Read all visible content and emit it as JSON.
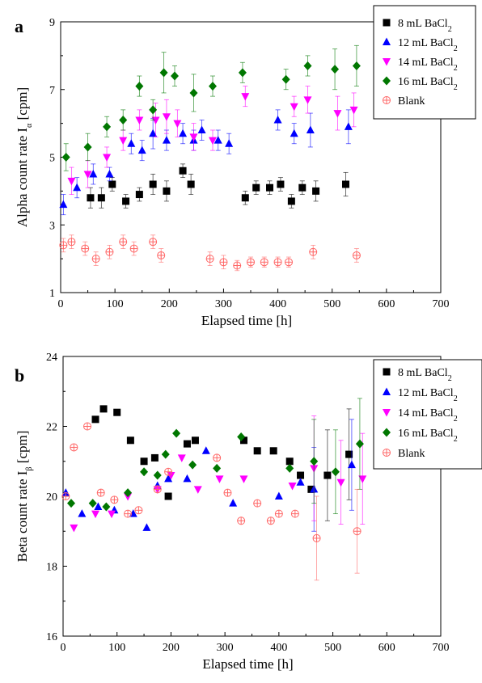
{
  "chart_data": [
    {
      "panel": "a",
      "type": "scatter",
      "xlabel": "Elapsed time [h]",
      "ylabel": "Alpha count rate I",
      "ylabel_sub": "α",
      "ylabel_unit": " [cpm]",
      "xlim": [
        0,
        700
      ],
      "ylim": [
        1,
        9
      ],
      "xticks": [
        0,
        100,
        200,
        300,
        400,
        500,
        600,
        700
      ],
      "yticks": [
        1,
        3,
        5,
        7,
        9
      ],
      "legend_position": "top-right",
      "series": [
        {
          "name": "8 mL BaCl",
          "name_sub": "2",
          "marker": "square",
          "color": "#000000",
          "points": [
            [
              55,
              3.8
            ],
            [
              75,
              3.8
            ],
            [
              95,
              4.2
            ],
            [
              120,
              3.7
            ],
            [
              145,
              3.9
            ],
            [
              170,
              4.2
            ],
            [
              195,
              4.0
            ],
            [
              225,
              4.6
            ],
            [
              240,
              4.2
            ],
            [
              340,
              3.8
            ],
            [
              360,
              4.1
            ],
            [
              385,
              4.1
            ],
            [
              405,
              4.2
            ],
            [
              425,
              3.7
            ],
            [
              445,
              4.1
            ],
            [
              470,
              4.0
            ],
            [
              525,
              4.2
            ]
          ],
          "err": [
            0.3,
            0.3,
            0.2,
            0.2,
            0.2,
            0.3,
            0.3,
            0.2,
            0.3,
            0.2,
            0.2,
            0.2,
            0.2,
            0.2,
            0.2,
            0.3,
            0.35
          ]
        },
        {
          "name": "12 mL BaCl",
          "name_sub": "2",
          "marker": "triangle-up",
          "color": "#0000ff",
          "points": [
            [
              5,
              3.6
            ],
            [
              30,
              4.1
            ],
            [
              60,
              4.5
            ],
            [
              90,
              4.5
            ],
            [
              130,
              5.4
            ],
            [
              150,
              5.2
            ],
            [
              170,
              5.7
            ],
            [
              195,
              5.5
            ],
            [
              225,
              5.7
            ],
            [
              245,
              5.5
            ],
            [
              260,
              5.8
            ],
            [
              290,
              5.5
            ],
            [
              310,
              5.4
            ],
            [
              400,
              6.1
            ],
            [
              430,
              5.7
            ],
            [
              460,
              5.8
            ],
            [
              530,
              5.9
            ]
          ],
          "err": [
            0.3,
            0.3,
            0.3,
            0.2,
            0.3,
            0.3,
            0.45,
            0.3,
            0.3,
            0.3,
            0.3,
            0.3,
            0.3,
            0.3,
            0.3,
            0.5,
            0.5
          ]
        },
        {
          "name": "14 mL BaCl",
          "name_sub": "2",
          "marker": "triangle-down",
          "color": "#ff00ff",
          "points": [
            [
              20,
              4.3
            ],
            [
              50,
              4.5
            ],
            [
              85,
              5.0
            ],
            [
              115,
              5.5
            ],
            [
              145,
              6.1
            ],
            [
              175,
              6.1
            ],
            [
              195,
              6.2
            ],
            [
              215,
              6.0
            ],
            [
              245,
              5.6
            ],
            [
              280,
              5.5
            ],
            [
              340,
              6.8
            ],
            [
              430,
              6.5
            ],
            [
              455,
              6.7
            ],
            [
              510,
              6.3
            ],
            [
              540,
              6.4
            ]
          ],
          "err": [
            0.4,
            0.4,
            0.3,
            0.3,
            0.3,
            0.5,
            0.5,
            0.4,
            0.4,
            0.3,
            0.3,
            0.3,
            0.4,
            0.5,
            0.5
          ]
        },
        {
          "name": "16 mL BaCl",
          "name_sub": "2",
          "marker": "diamond",
          "color": "#007700",
          "points": [
            [
              10,
              5.0
            ],
            [
              50,
              5.3
            ],
            [
              85,
              5.9
            ],
            [
              115,
              6.1
            ],
            [
              145,
              7.1
            ],
            [
              170,
              6.4
            ],
            [
              190,
              7.5
            ],
            [
              210,
              7.4
            ],
            [
              245,
              6.9
            ],
            [
              280,
              7.1
            ],
            [
              335,
              7.5
            ],
            [
              415,
              7.3
            ],
            [
              455,
              7.7
            ],
            [
              505,
              7.6
            ],
            [
              545,
              7.7
            ]
          ],
          "err": [
            0.4,
            0.4,
            0.3,
            0.3,
            0.3,
            0.3,
            0.6,
            0.3,
            0.55,
            0.3,
            0.3,
            0.3,
            0.3,
            0.6,
            0.6
          ]
        },
        {
          "name": "Blank",
          "marker": "circle-cross",
          "color": "#ff6666",
          "points": [
            [
              5,
              2.4
            ],
            [
              20,
              2.5
            ],
            [
              45,
              2.3
            ],
            [
              65,
              2.0
            ],
            [
              90,
              2.2
            ],
            [
              115,
              2.5
            ],
            [
              135,
              2.3
            ],
            [
              170,
              2.5
            ],
            [
              185,
              2.1
            ],
            [
              275,
              2.0
            ],
            [
              300,
              1.9
            ],
            [
              325,
              1.8
            ],
            [
              350,
              1.9
            ],
            [
              375,
              1.9
            ],
            [
              400,
              1.9
            ],
            [
              420,
              1.9
            ],
            [
              465,
              2.2
            ],
            [
              545,
              2.1
            ]
          ],
          "err": [
            0.2,
            0.2,
            0.2,
            0.2,
            0.2,
            0.2,
            0.2,
            0.2,
            0.2,
            0.2,
            0.2,
            0.15,
            0.15,
            0.15,
            0.15,
            0.15,
            0.2,
            0.2
          ]
        }
      ]
    },
    {
      "panel": "b",
      "type": "scatter",
      "xlabel": "Elapsed time [h]",
      "ylabel": "Beta count rate I",
      "ylabel_sub": "β",
      "ylabel_unit": " [cpm]",
      "xlim": [
        0,
        700
      ],
      "ylim": [
        16,
        24
      ],
      "xticks": [
        0,
        100,
        200,
        300,
        400,
        500,
        600,
        700
      ],
      "yticks": [
        16,
        18,
        20,
        22,
        24
      ],
      "legend_position": "top-right",
      "series": [
        {
          "name": "8 mL BaCl",
          "name_sub": "2",
          "marker": "square",
          "color": "#000000",
          "points": [
            [
              60,
              22.2
            ],
            [
              75,
              22.5
            ],
            [
              100,
              22.4
            ],
            [
              125,
              21.6
            ],
            [
              150,
              21.0
            ],
            [
              170,
              21.1
            ],
            [
              195,
              20.0
            ],
            [
              230,
              21.5
            ],
            [
              245,
              21.6
            ],
            [
              335,
              21.6
            ],
            [
              360,
              21.3
            ],
            [
              390,
              21.3
            ],
            [
              420,
              21.0
            ],
            [
              440,
              20.6
            ],
            [
              460,
              20.2
            ],
            [
              490,
              20.6
            ],
            [
              530,
              21.2
            ]
          ],
          "err": [
            0,
            0,
            0,
            0,
            0,
            0,
            0,
            0,
            0,
            0,
            0,
            0,
            0,
            0,
            0,
            1.3,
            1.3
          ]
        },
        {
          "name": "12 mL BaCl",
          "name_sub": "2",
          "marker": "triangle-up",
          "color": "#0000ff",
          "points": [
            [
              5,
              20.1
            ],
            [
              35,
              19.5
            ],
            [
              65,
              19.7
            ],
            [
              95,
              19.6
            ],
            [
              130,
              19.5
            ],
            [
              155,
              19.1
            ],
            [
              175,
              20.3
            ],
            [
              195,
              20.5
            ],
            [
              230,
              20.5
            ],
            [
              265,
              21.3
            ],
            [
              315,
              19.8
            ],
            [
              400,
              20.0
            ],
            [
              440,
              20.4
            ],
            [
              465,
              20.2
            ],
            [
              535,
              20.9
            ]
          ],
          "err": [
            0,
            0,
            0,
            0,
            0,
            0,
            0,
            0,
            0,
            0,
            0,
            0,
            0,
            1.2,
            1.3
          ]
        },
        {
          "name": "14 mL BaCl",
          "name_sub": "2",
          "marker": "triangle-down",
          "color": "#ff00ff",
          "points": [
            [
              20,
              19.1
            ],
            [
              60,
              19.5
            ],
            [
              90,
              19.5
            ],
            [
              120,
              20.0
            ],
            [
              175,
              20.2
            ],
            [
              200,
              20.6
            ],
            [
              220,
              21.1
            ],
            [
              250,
              20.2
            ],
            [
              290,
              20.5
            ],
            [
              335,
              20.5
            ],
            [
              425,
              20.3
            ],
            [
              465,
              20.8
            ],
            [
              515,
              20.4
            ],
            [
              555,
              20.5
            ]
          ],
          "err": [
            0,
            0,
            0,
            0,
            0,
            0,
            0,
            0,
            0,
            0,
            0,
            1.5,
            1.2,
            1.3
          ]
        },
        {
          "name": "16 mL BaCl",
          "name_sub": "2",
          "marker": "diamond",
          "color": "#007700",
          "points": [
            [
              15,
              19.8
            ],
            [
              55,
              19.8
            ],
            [
              80,
              19.7
            ],
            [
              120,
              20.1
            ],
            [
              150,
              20.7
            ],
            [
              175,
              20.6
            ],
            [
              190,
              21.2
            ],
            [
              210,
              21.8
            ],
            [
              240,
              20.9
            ],
            [
              285,
              20.8
            ],
            [
              330,
              21.7
            ],
            [
              420,
              20.8
            ],
            [
              465,
              21.0
            ],
            [
              505,
              20.7
            ],
            [
              550,
              21.5
            ]
          ],
          "err": [
            0,
            0,
            0,
            0,
            0,
            0,
            0,
            0,
            0,
            0,
            0,
            0,
            1.2,
            1.2,
            1.3
          ]
        },
        {
          "name": "Blank",
          "marker": "circle-cross",
          "color": "#ff6666",
          "points": [
            [
              5,
              20.0
            ],
            [
              20,
              21.4
            ],
            [
              45,
              22.0
            ],
            [
              70,
              20.1
            ],
            [
              95,
              19.9
            ],
            [
              120,
              19.5
            ],
            [
              140,
              19.6
            ],
            [
              175,
              20.2
            ],
            [
              195,
              20.7
            ],
            [
              285,
              21.1
            ],
            [
              305,
              20.1
            ],
            [
              330,
              19.3
            ],
            [
              360,
              19.8
            ],
            [
              385,
              19.3
            ],
            [
              400,
              19.5
            ],
            [
              430,
              19.5
            ],
            [
              470,
              18.8
            ],
            [
              545,
              19.0
            ]
          ],
          "err": [
            0,
            0,
            0,
            0,
            0,
            0,
            0,
            0,
            0,
            0,
            0,
            0,
            0,
            0,
            0,
            0,
            1.2,
            1.2
          ]
        }
      ]
    }
  ]
}
